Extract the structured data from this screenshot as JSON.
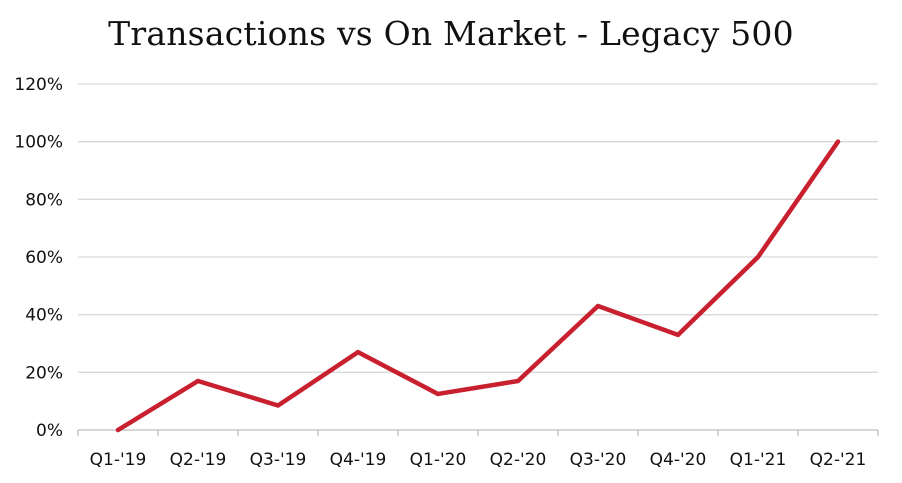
{
  "chart_data": {
    "type": "line",
    "title": "Transactions vs On Market - Legacy 500",
    "xlabel": "",
    "ylabel": "",
    "categories": [
      "Q1-'19",
      "Q2-'19",
      "Q3-'19",
      "Q4-'19",
      "Q1-'20",
      "Q2-'20",
      "Q3-'20",
      "Q4-'20",
      "Q1-'21",
      "Q2-'21"
    ],
    "series": [
      {
        "values": [
          0,
          17,
          8.5,
          27,
          12.5,
          17,
          43,
          33,
          60,
          100
        ],
        "color": "#c8202f"
      }
    ],
    "ylim": [
      0,
      120
    ],
    "y_ticks": [
      0,
      20,
      40,
      60,
      80,
      100,
      120
    ],
    "y_tick_format": "percent",
    "grid": "horizontal",
    "legend": "none"
  }
}
